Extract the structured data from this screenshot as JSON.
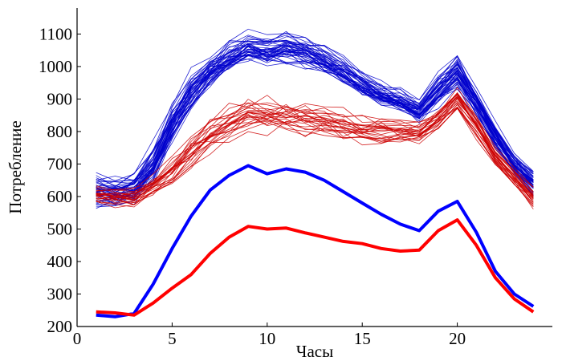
{
  "chart_data": {
    "type": "line",
    "title": "",
    "xlabel": "Часы",
    "ylabel": "Потребление",
    "xlim": [
      0,
      25
    ],
    "ylim": [
      200,
      1180
    ],
    "x_ticks": [
      0,
      5,
      10,
      15,
      20
    ],
    "y_ticks": [
      200,
      300,
      400,
      500,
      600,
      700,
      800,
      900,
      1000,
      1100
    ],
    "grid": false,
    "legend": "none",
    "x": [
      1,
      2,
      3,
      4,
      5,
      6,
      7,
      8,
      9,
      10,
      11,
      12,
      13,
      14,
      15,
      16,
      17,
      18,
      19,
      20,
      21,
      22,
      23,
      24
    ],
    "series": [
      {
        "color": "#0000ff",
        "width": 4,
        "values": [
          235,
          230,
          240,
          330,
          440,
          540,
          620,
          665,
          695,
          670,
          685,
          675,
          650,
          615,
          580,
          545,
          515,
          495,
          555,
          585,
          490,
          370,
          300,
          262
        ]
      },
      {
        "color": "#ff0000",
        "width": 4,
        "values": [
          245,
          242,
          235,
          272,
          318,
          360,
          425,
          475,
          508,
          500,
          503,
          488,
          475,
          462,
          455,
          440,
          432,
          435,
          495,
          528,
          450,
          350,
          285,
          245
        ]
      }
    ],
    "bundles": [
      {
        "color": "#0000cc",
        "count": 45,
        "width": 0.8,
        "mean": [
          615,
          612,
          625,
          700,
          820,
          920,
          985,
          1030,
          1060,
          1048,
          1058,
          1045,
          1020,
          985,
          945,
          915,
          895,
          865,
          930,
          985,
          890,
          785,
          700,
          640
        ],
        "spread": [
          42,
          40,
          38,
          45,
          48,
          45,
          42,
          40,
          38,
          38,
          38,
          38,
          36,
          34,
          32,
          30,
          28,
          28,
          40,
          42,
          36,
          32,
          30,
          32
        ]
      },
      {
        "color": "#cc0000",
        "count": 25,
        "width": 0.8,
        "mean": [
          605,
          600,
          600,
          635,
          680,
          740,
          790,
          830,
          855,
          848,
          852,
          840,
          832,
          822,
          810,
          805,
          802,
          798,
          840,
          905,
          820,
          730,
          660,
          600
        ],
        "spread": [
          25,
          25,
          25,
          30,
          38,
          42,
          45,
          45,
          45,
          45,
          45,
          42,
          40,
          38,
          36,
          34,
          32,
          30,
          32,
          38,
          36,
          30,
          28,
          28
        ]
      }
    ]
  }
}
